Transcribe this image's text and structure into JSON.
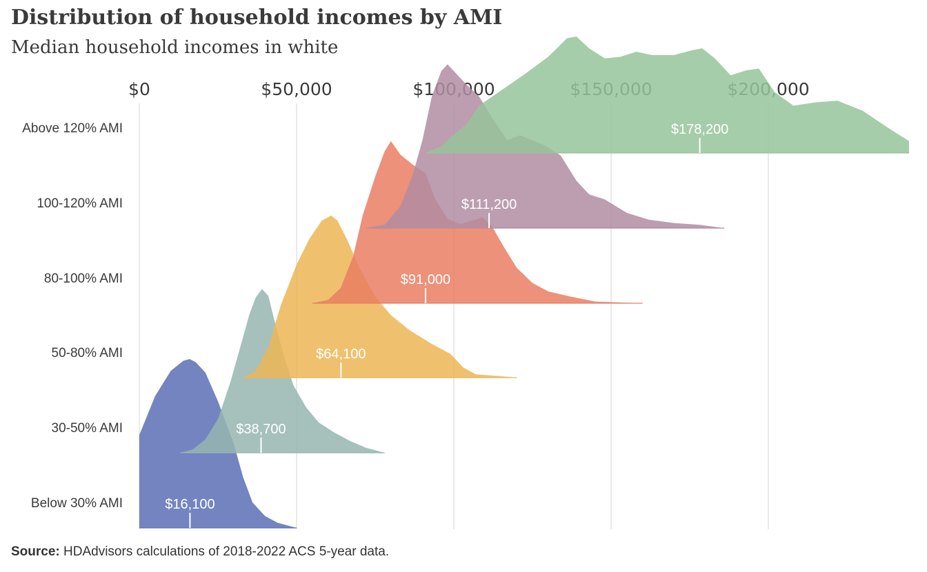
{
  "title": "Distribution of household incomes by AMI",
  "subtitle": "Median household incomes in white",
  "source": {
    "label": "Source:",
    "text": "HDAdvisors  calculations of 2018-2022  ACS 5-year  data."
  },
  "colors": {
    "gridline": "#d6d6d6",
    "text": "#3a3a3a",
    "median_label": "#ffffff"
  },
  "chart_data": {
    "type": "area",
    "chart_style": "ridgeline",
    "x_tick_labels": [
      "$0",
      "$50,000",
      "$100,000",
      "$150,000",
      "$200,000"
    ],
    "x_ticks": [
      0,
      50000,
      100000,
      150000,
      200000
    ],
    "xlim": [
      0,
      245000
    ],
    "grid": true,
    "series": [
      {
        "name": "Below 30% AMI",
        "color": "#5b6fb5",
        "median": 16100,
        "median_label": "$16,100",
        "density": [
          [
            0,
            0.55
          ],
          [
            5000,
            0.78
          ],
          [
            10000,
            0.93
          ],
          [
            14000,
            0.99
          ],
          [
            16000,
            1.0
          ],
          [
            18000,
            0.98
          ],
          [
            21000,
            0.92
          ],
          [
            25000,
            0.75
          ],
          [
            30000,
            0.5
          ],
          [
            33000,
            0.3
          ],
          [
            36000,
            0.15
          ],
          [
            40000,
            0.07
          ],
          [
            44000,
            0.03
          ],
          [
            50000,
            0
          ]
        ]
      },
      {
        "name": "30-50% AMI",
        "color": "#97b5b0",
        "median": 38700,
        "median_label": "$38,700",
        "density": [
          [
            13000,
            0
          ],
          [
            17000,
            0.02
          ],
          [
            21000,
            0.08
          ],
          [
            25000,
            0.2
          ],
          [
            29000,
            0.42
          ],
          [
            32000,
            0.62
          ],
          [
            35000,
            0.82
          ],
          [
            37000,
            0.92
          ],
          [
            39000,
            0.97
          ],
          [
            41000,
            0.93
          ],
          [
            43000,
            0.78
          ],
          [
            46000,
            0.57
          ],
          [
            49000,
            0.4
          ],
          [
            53000,
            0.27
          ],
          [
            57000,
            0.18
          ],
          [
            62000,
            0.12
          ],
          [
            67000,
            0.07
          ],
          [
            72000,
            0.03
          ],
          [
            78000,
            0
          ]
        ]
      },
      {
        "name": "50-80% AMI",
        "color": "#ecb655",
        "median": 64100,
        "median_label": "$64,100",
        "density": [
          [
            33000,
            0
          ],
          [
            37000,
            0.04
          ],
          [
            41000,
            0.18
          ],
          [
            45000,
            0.43
          ],
          [
            50000,
            0.67
          ],
          [
            54000,
            0.82
          ],
          [
            58000,
            0.93
          ],
          [
            61000,
            0.96
          ],
          [
            63000,
            0.93
          ],
          [
            66000,
            0.82
          ],
          [
            70000,
            0.65
          ],
          [
            75000,
            0.48
          ],
          [
            80000,
            0.37
          ],
          [
            86000,
            0.28
          ],
          [
            93000,
            0.2
          ],
          [
            99000,
            0.14
          ],
          [
            103000,
            0.06
          ],
          [
            107000,
            0.02
          ],
          [
            114000,
            0.01
          ],
          [
            120000,
            0
          ]
        ]
      },
      {
        "name": "80-100% AMI",
        "color": "#ea7e63",
        "median": 91000,
        "median_label": "$91,000",
        "density": [
          [
            55000,
            0
          ],
          [
            60000,
            0.02
          ],
          [
            64000,
            0.09
          ],
          [
            68000,
            0.28
          ],
          [
            71000,
            0.52
          ],
          [
            75000,
            0.75
          ],
          [
            78000,
            0.9
          ],
          [
            80000,
            0.96
          ],
          [
            83000,
            0.88
          ],
          [
            87000,
            0.82
          ],
          [
            91000,
            0.77
          ],
          [
            94000,
            0.62
          ],
          [
            98000,
            0.5
          ],
          [
            102000,
            0.47
          ],
          [
            106000,
            0.49
          ],
          [
            109000,
            0.51
          ],
          [
            112000,
            0.46
          ],
          [
            116000,
            0.33
          ],
          [
            120000,
            0.21
          ],
          [
            125000,
            0.12
          ],
          [
            130000,
            0.07
          ],
          [
            137000,
            0.04
          ],
          [
            145000,
            0.01
          ],
          [
            160000,
            0
          ]
        ]
      },
      {
        "name": "100-120% AMI",
        "color": "#b28ca2",
        "median": 111200,
        "median_label": "$111,200",
        "density": [
          [
            72000,
            0
          ],
          [
            78000,
            0.02
          ],
          [
            83000,
            0.13
          ],
          [
            87000,
            0.32
          ],
          [
            90000,
            0.52
          ],
          [
            93000,
            0.78
          ],
          [
            96000,
            0.93
          ],
          [
            98000,
            0.97
          ],
          [
            100000,
            0.93
          ],
          [
            104000,
            0.85
          ],
          [
            108000,
            0.78
          ],
          [
            113000,
            0.63
          ],
          [
            117000,
            0.52
          ],
          [
            121000,
            0.55
          ],
          [
            125000,
            0.52
          ],
          [
            129000,
            0.49
          ],
          [
            134000,
            0.43
          ],
          [
            139000,
            0.28
          ],
          [
            143000,
            0.2
          ],
          [
            148000,
            0.17
          ],
          [
            155000,
            0.09
          ],
          [
            162000,
            0.05
          ],
          [
            170000,
            0.03
          ],
          [
            178000,
            0.02
          ],
          [
            186000,
            0
          ]
        ]
      },
      {
        "name": "Above 120% AMI",
        "color": "#97c49a",
        "median": 178200,
        "median_label": "$178,200",
        "density": [
          [
            91000,
            0
          ],
          [
            96000,
            0.04
          ],
          [
            100000,
            0.11
          ],
          [
            104000,
            0.17
          ],
          [
            108000,
            0.28
          ],
          [
            115000,
            0.37
          ],
          [
            122000,
            0.46
          ],
          [
            130000,
            0.57
          ],
          [
            136000,
            0.68
          ],
          [
            139000,
            0.69
          ],
          [
            143000,
            0.62
          ],
          [
            148000,
            0.56
          ],
          [
            153000,
            0.57
          ],
          [
            158000,
            0.6
          ],
          [
            163000,
            0.58
          ],
          [
            170000,
            0.58
          ],
          [
            176000,
            0.61
          ],
          [
            179000,
            0.62
          ],
          [
            183000,
            0.56
          ],
          [
            188000,
            0.46
          ],
          [
            193000,
            0.49
          ],
          [
            197000,
            0.5
          ],
          [
            202000,
            0.36
          ],
          [
            208000,
            0.28
          ],
          [
            215000,
            0.3
          ],
          [
            222000,
            0.31
          ],
          [
            230000,
            0.25
          ],
          [
            238000,
            0.15
          ],
          [
            245000,
            0.07
          ]
        ]
      }
    ]
  }
}
